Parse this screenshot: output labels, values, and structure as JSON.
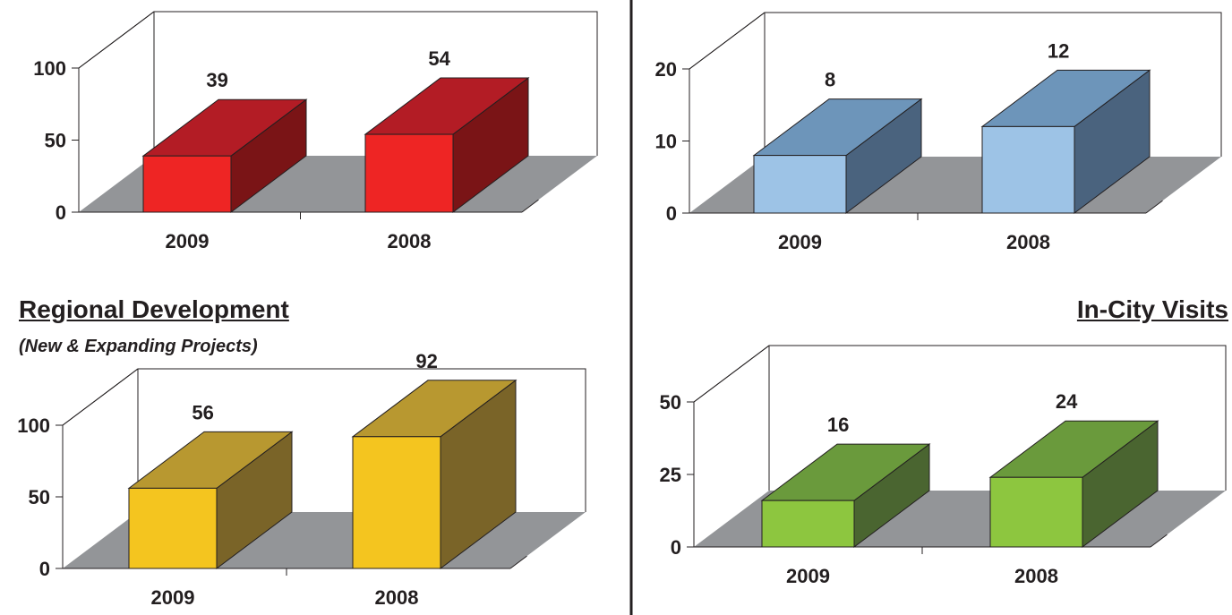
{
  "panels": {
    "top_left": {
      "title": "",
      "subtitle": ""
    },
    "top_right": {
      "title": "",
      "subtitle": ""
    },
    "bottom_left": {
      "title": "Regional Development",
      "subtitle": "(New & Expanding Projects)"
    },
    "bottom_right": {
      "title": "In-City Visits",
      "subtitle": ""
    }
  },
  "chart_data": [
    {
      "type": "bar",
      "title": "",
      "categories": [
        "2009",
        "2008"
      ],
      "values": [
        39,
        54
      ],
      "ylim": [
        0,
        100
      ],
      "yticks": [
        0,
        50,
        100
      ],
      "data_labels": [
        "39",
        "54"
      ],
      "colors": {
        "front": "#ee2524",
        "top": "#b31c25",
        "side": "#7a1416"
      },
      "floor_color": "#939598",
      "grid": false
    },
    {
      "type": "bar",
      "title": "",
      "categories": [
        "2009",
        "2008"
      ],
      "values": [
        8,
        12
      ],
      "ylim": [
        0,
        20
      ],
      "yticks": [
        0,
        10,
        20
      ],
      "data_labels": [
        "8",
        "12"
      ],
      "colors": {
        "front": "#9dc3e6",
        "top": "#6d95ba",
        "side": "#4a637e"
      },
      "floor_color": "#939598",
      "grid": false
    },
    {
      "type": "bar",
      "title": "Regional Development",
      "subtitle": "(New & Expanding Projects)",
      "categories": [
        "2009",
        "2008"
      ],
      "values": [
        56,
        92
      ],
      "ylim": [
        0,
        100
      ],
      "yticks": [
        0,
        50,
        100
      ],
      "data_labels": [
        "56",
        "92"
      ],
      "colors": {
        "front": "#f4c51f",
        "top": "#b89830",
        "side": "#7a6428"
      },
      "floor_color": "#939598",
      "grid": false
    },
    {
      "type": "bar",
      "title": "In-City Visits",
      "categories": [
        "2009",
        "2008"
      ],
      "values": [
        16,
        24
      ],
      "ylim": [
        0,
        50
      ],
      "yticks": [
        0,
        25,
        50
      ],
      "data_labels": [
        "16",
        "24"
      ],
      "colors": {
        "front": "#8dc63f",
        "top": "#6a9a3c",
        "side": "#4a6530"
      },
      "floor_color": "#939598",
      "grid": false
    }
  ]
}
